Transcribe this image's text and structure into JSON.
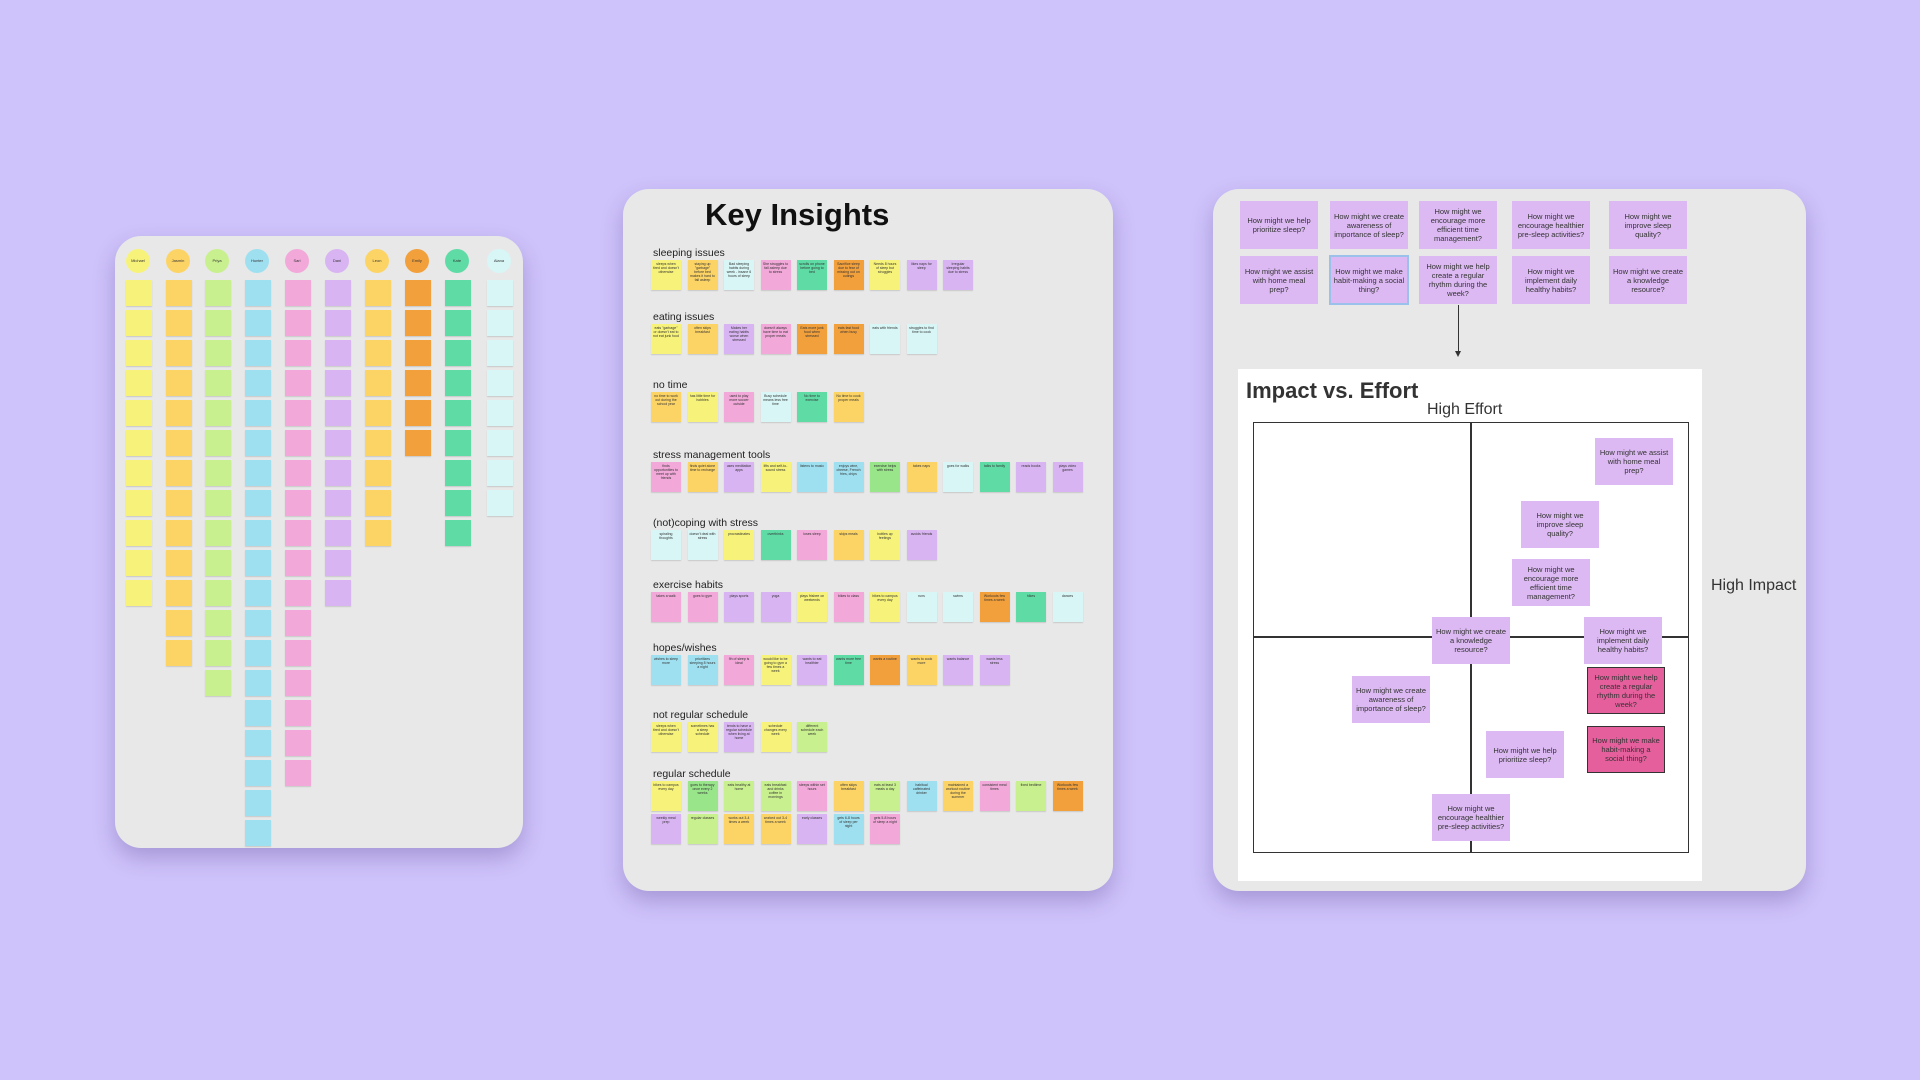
{
  "colors": {
    "background": "#cfc3fb",
    "board": "#e8e8e9",
    "sticky_yellow": "#f7f37a",
    "sticky_orange": "#f2a03c",
    "sticky_green": "#98e58a",
    "sticky_teal": "#5fdca6",
    "sticky_blue": "#9fe0f0",
    "sticky_pink": "#f2a9d9",
    "sticky_purple": "#d9b4f2",
    "sticky_gold": "#fcd466",
    "hmw_purple": "#dcb9f3",
    "hmw_high_priority": "#e65f9d"
  },
  "raw_board": {
    "people": [
      {
        "name": "Michael",
        "color": "#f7f37a"
      },
      {
        "name": "Jasmin",
        "color": "#fcd466"
      },
      {
        "name": "Priya",
        "color": "#c9f08e"
      },
      {
        "name": "Hunter",
        "color": "#9fe0f0"
      },
      {
        "name": "Sari",
        "color": "#f2a9d9"
      },
      {
        "name": "Dani",
        "color": "#d9b4f2"
      },
      {
        "name": "Leon",
        "color": "#fcd466"
      },
      {
        "name": "Emily",
        "color": "#f2a03c"
      },
      {
        "name": "Kate",
        "color": "#5fdca6"
      },
      {
        "name": "Alana",
        "color": "#d8f6f6"
      }
    ]
  },
  "key_insights": {
    "title": "Key Insights",
    "sections": [
      {
        "label": "sleeping issues",
        "notes": [
          {
            "text": "sleeps when tired and doesn't otherwise",
            "color": "#f7f37a"
          },
          {
            "text": "staying up \"garbage\" before bed makes it hard to fall asleep",
            "color": "#fcd466"
          },
          {
            "text": "Bad sleeping habits during week - insane 6 hours of sleep",
            "color": "#d8f6f6"
          },
          {
            "text": "She struggles to fall asleep due to stress",
            "color": "#f2a9d9"
          },
          {
            "text": "scrolls on phone before going to bed",
            "color": "#5fdca6"
          },
          {
            "text": "Sacrifice sleep due to fear of missing out on outings",
            "color": "#f2a03c"
          },
          {
            "text": "Needs 8 hours of sleep but struggles",
            "color": "#f7f37a"
          },
          {
            "text": "likes naps for sleep",
            "color": "#d9b4f2"
          },
          {
            "text": "Irregular sleeping habits due to stress",
            "color": "#d9b4f2"
          }
        ]
      },
      {
        "label": "eating issues",
        "notes": [
          {
            "text": "eats \"garbage\" or doesn't eat to not eat junk food",
            "color": "#f7f37a"
          },
          {
            "text": "often skips breakfast",
            "color": "#fcd466"
          },
          {
            "text": "Makes her eating habits worse when stressed",
            "color": "#d9b4f2"
          },
          {
            "text": "doesn't always have time to eat proper meals",
            "color": "#f2a9d9"
          },
          {
            "text": "Eats more junk food when stressed",
            "color": "#f2a03c"
          },
          {
            "text": "eats fast food when busy",
            "color": "#f2a03c"
          },
          {
            "text": "eats with friends",
            "color": "#d8f6f6"
          },
          {
            "text": "struggles to find time to cook",
            "color": "#d8f6f6"
          }
        ]
      },
      {
        "label": "no time",
        "notes": [
          {
            "text": "no time to work out during the school year",
            "color": "#fcd466"
          },
          {
            "text": "has little time for hobbies",
            "color": "#f7f37a"
          },
          {
            "text": "used to play more soccer outside",
            "color": "#f2a9d9"
          },
          {
            "text": "Busy schedule means less free time",
            "color": "#d8f6f6"
          },
          {
            "text": "No time to exercise",
            "color": "#5fdca6"
          },
          {
            "text": "No time to cook proper meals",
            "color": "#fcd466"
          }
        ]
      },
      {
        "label": "stress management tools",
        "notes": [
          {
            "text": "finds opportunities to meet up with friends",
            "color": "#f2a9d9"
          },
          {
            "text": "finds quiet alone time to recharge",
            "color": "#fcd466"
          },
          {
            "text": "uses meditation apps",
            "color": "#d9b4f2"
          },
          {
            "text": "lifts and self-to-sound stress",
            "color": "#f7f37a"
          },
          {
            "text": "listens to music",
            "color": "#9fe0f0"
          },
          {
            "text": "enjoys wine, cheese, French fries, chips",
            "color": "#9fe0f0"
          },
          {
            "text": "exercise helps with stress",
            "color": "#98e58a"
          },
          {
            "text": "takes naps",
            "color": "#fcd466"
          },
          {
            "text": "goes for walks",
            "color": "#d8f6f6"
          },
          {
            "text": "talks to family",
            "color": "#5fdca6"
          },
          {
            "text": "reads books",
            "color": "#d9b4f2"
          },
          {
            "text": "plays video games",
            "color": "#d9b4f2"
          }
        ]
      },
      {
        "label": "(not)coping with stress",
        "notes": [
          {
            "text": "spiraling thoughts",
            "color": "#d8f6f6"
          },
          {
            "text": "doesn't deal with stress",
            "color": "#d8f6f6"
          },
          {
            "text": "procrastinates",
            "color": "#f7f37a"
          },
          {
            "text": "overthinks",
            "color": "#5fdca6"
          },
          {
            "text": "loses sleep",
            "color": "#f2a9d9"
          },
          {
            "text": "skips meals",
            "color": "#fcd466"
          },
          {
            "text": "bottles up feelings",
            "color": "#f7f37a"
          },
          {
            "text": "avoids friends",
            "color": "#d9b4f2"
          }
        ]
      },
      {
        "label": "exercise habits",
        "notes": [
          {
            "text": "takes a walk",
            "color": "#f2a9d9"
          },
          {
            "text": "goes to gym",
            "color": "#f2a9d9"
          },
          {
            "text": "plays sports",
            "color": "#d9b4f2"
          },
          {
            "text": "yoga",
            "color": "#d9b4f2"
          },
          {
            "text": "plays frisbee on weekends",
            "color": "#f7f37a"
          },
          {
            "text": "bikes to class",
            "color": "#f2a9d9"
          },
          {
            "text": "bikes to campus every day",
            "color": "#f7f37a"
          },
          {
            "text": "runs",
            "color": "#d8f6f6"
          },
          {
            "text": "swims",
            "color": "#d8f6f6"
          },
          {
            "text": "Workouts few times a week",
            "color": "#f2a03c"
          },
          {
            "text": "hikes",
            "color": "#5fdca6"
          },
          {
            "text": "dances",
            "color": "#d8f6f6"
          }
        ]
      },
      {
        "label": "hopes/wishes",
        "notes": [
          {
            "text": "wishes to sleep more",
            "color": "#9fe0f0"
          },
          {
            "text": "prioritizes sleeping 8 hours a night",
            "color": "#9fe0f0"
          },
          {
            "text": "9h of sleep is ideal",
            "color": "#f2a9d9"
          },
          {
            "text": "would like to be going to gym a few times a week",
            "color": "#f7f37a"
          },
          {
            "text": "wants to eat healthier",
            "color": "#d9b4f2"
          },
          {
            "text": "wants more free time",
            "color": "#5fdca6"
          },
          {
            "text": "wants a routine",
            "color": "#f2a03c"
          },
          {
            "text": "wants to cook more",
            "color": "#fcd466"
          },
          {
            "text": "wants balance",
            "color": "#d9b4f2"
          },
          {
            "text": "wants less stress",
            "color": "#d9b4f2"
          }
        ]
      },
      {
        "label": "not regular schedule",
        "notes": [
          {
            "text": "sleeps when tired and doesn't otherwise",
            "color": "#f7f37a"
          },
          {
            "text": "sometimes has a sleep schedule",
            "color": "#f7f37a"
          },
          {
            "text": "tends to have a regular schedule when living at home",
            "color": "#d9b4f2"
          },
          {
            "text": "schedule changes every week",
            "color": "#f7f37a"
          },
          {
            "text": "different schedule each week",
            "color": "#c9f08e"
          }
        ]
      },
      {
        "label": "regular schedule",
        "notes": [
          {
            "text": "bikes to campus every day",
            "color": "#f7f37a"
          },
          {
            "text": "goes to therapy once every 2 weeks",
            "color": "#98e58a"
          },
          {
            "text": "eats healthy at home",
            "color": "#c9f08e"
          },
          {
            "text": "eats breakfast and drinks coffee in mornings",
            "color": "#c9f08e"
          },
          {
            "text": "sleeps within set hours",
            "color": "#f2a9d9"
          },
          {
            "text": "often skips breakfast",
            "color": "#fcd466"
          },
          {
            "text": "eats at least 3 meals a day",
            "color": "#c9f08e"
          },
          {
            "text": "habitual caffeinated drinker",
            "color": "#9fe0f0"
          },
          {
            "text": "maintained a workout routine during the summer",
            "color": "#fcd466"
          },
          {
            "text": "consistent meal times",
            "color": "#f2a9d9"
          },
          {
            "text": "fixed bedtime",
            "color": "#c9f08e"
          },
          {
            "text": "Workouts few times a week",
            "color": "#f2a03c"
          },
          {
            "text": "weekly meal prep",
            "color": "#d9b4f2"
          },
          {
            "text": "regular classes",
            "color": "#c9f08e"
          },
          {
            "text": "works out 3-4 times a week",
            "color": "#fcd466"
          },
          {
            "text": "worked out 3-4 times a week",
            "color": "#fcd466"
          },
          {
            "text": "early classes",
            "color": "#d9b4f2"
          },
          {
            "text": "gets 6-8 hours of sleep per night",
            "color": "#9fe0f0"
          },
          {
            "text": "gets 5-8 hours of sleep a night",
            "color": "#f2a9d9"
          }
        ]
      }
    ]
  },
  "hmw": {
    "questions": [
      {
        "text": "How might we help prioritize sleep?",
        "selected": false
      },
      {
        "text": "How might we create awareness of importance of sleep?",
        "selected": false
      },
      {
        "text": "How might we encourage more efficient time management?",
        "selected": false
      },
      {
        "text": "How might we encourage healthier pre-sleep activities?",
        "selected": false
      },
      {
        "text": "How might we improve sleep quality?",
        "selected": false
      },
      {
        "text": "How might we assist with home meal prep?",
        "selected": false
      },
      {
        "text": "How might we make habit-making a social thing?",
        "selected": true
      },
      {
        "text": "How might we help create a regular rhythm during the week?",
        "selected": false
      },
      {
        "text": "How might we implement daily healthy habits?",
        "selected": false
      },
      {
        "text": "How might we create a knowledge resource?",
        "selected": false
      }
    ]
  },
  "matrix": {
    "title": "Impact vs. Effort",
    "top_label": "High Effort",
    "right_label": "High Impact",
    "notes": [
      {
        "text": "How might we assist with home meal prep?",
        "highlight": false
      },
      {
        "text": "How might we improve sleep quality?",
        "highlight": false
      },
      {
        "text": "How might we encourage more efficient time management?",
        "highlight": false
      },
      {
        "text": "How might we create a knowledge resource?",
        "highlight": false
      },
      {
        "text": "How might we implement daily healthy habits?",
        "highlight": false
      },
      {
        "text": "How might we create awareness of importance of sleep?",
        "highlight": false
      },
      {
        "text": "How might we help create a regular rhythm during the week?",
        "highlight": true
      },
      {
        "text": "How might we make habit-making a social thing?",
        "highlight": true
      },
      {
        "text": "How might we help prioritize sleep?",
        "highlight": false
      },
      {
        "text": "How might we encourage healthier pre-sleep activities?",
        "highlight": false
      }
    ]
  }
}
